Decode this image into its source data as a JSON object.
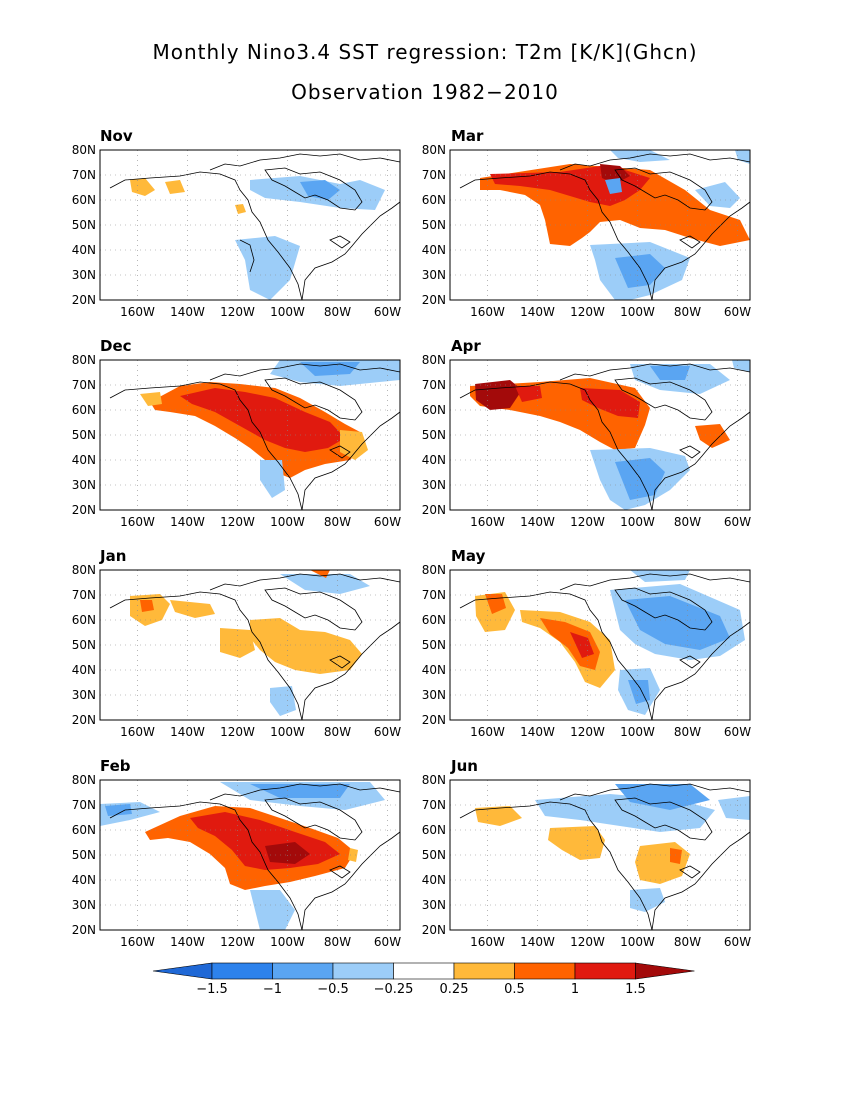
{
  "title": "Monthly Nino3.4 SST regression: T2m [K/K](Ghcn)",
  "subtitle": "Observation 1982−2010",
  "lat_ticks": [
    "80N",
    "70N",
    "60N",
    "50N",
    "40N",
    "30N",
    "20N"
  ],
  "lon_ticks": [
    "160W",
    "140W",
    "120W",
    "100W",
    "80W",
    "60W"
  ],
  "panels": [
    {
      "month": "Nov",
      "dominant": "weak-negative"
    },
    {
      "month": "Mar",
      "dominant": "strong-positive"
    },
    {
      "month": "Dec",
      "dominant": "positive"
    },
    {
      "month": "Apr",
      "dominant": "positive"
    },
    {
      "month": "Jan",
      "dominant": "weak-positive"
    },
    {
      "month": "May",
      "dominant": "mixed"
    },
    {
      "month": "Feb",
      "dominant": "strong-positive"
    },
    {
      "month": "Jun",
      "dominant": "weak-mixed"
    }
  ],
  "colorbar": {
    "labels": [
      "−1.5",
      "−1",
      "−0.5",
      "−0.25",
      "0.25",
      "0.5",
      "1",
      "1.5"
    ],
    "colors": [
      "#1f68d6",
      "#2d82ec",
      "#5aa5f2",
      "#9ccdf8",
      "#ffffff",
      "#ffb93a",
      "#ff6300",
      "#e01a0f",
      "#a30a0a"
    ]
  }
}
